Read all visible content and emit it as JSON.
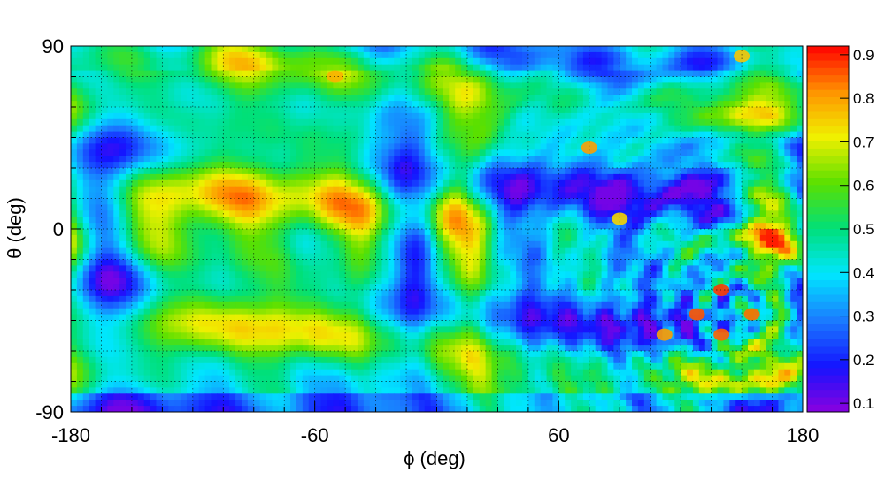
{
  "chart_data": {
    "type": "heatmap",
    "xlabel": "ϕ (deg)",
    "ylabel": "θ (deg)",
    "xlim": [
      -180,
      180
    ],
    "ylim": [
      -90,
      90
    ],
    "x_ticks": [
      -180,
      -60,
      60,
      180
    ],
    "x_tick_labels": [
      "-180",
      "-60",
      "60",
      "180"
    ],
    "y_ticks": [
      -90,
      0,
      90
    ],
    "y_tick_labels": [
      "-90",
      "0",
      "90"
    ],
    "grid": true,
    "colorbar": {
      "range": [
        0.08,
        0.92
      ],
      "ticks": [
        0.1,
        0.2,
        0.3,
        0.4,
        0.5,
        0.6,
        0.7,
        0.8,
        0.9
      ],
      "tick_labels": [
        "0.1",
        "0.2",
        "0.3",
        "0.4",
        "0.5",
        "0.6",
        "0.7",
        "0.8",
        "0.9"
      ],
      "colors": [
        "#8a00e0",
        "#1414ff",
        "#1a7cff",
        "#00e6ff",
        "#00e07a",
        "#5ae000",
        "#f0f000",
        "#ff9200",
        "#ff0000"
      ],
      "placement": "right"
    },
    "highlights": [
      {
        "phi": 140,
        "theta": -30,
        "value": 0.88
      },
      {
        "phi": 128,
        "theta": -42,
        "value": 0.86
      },
      {
        "phi": 155,
        "theta": -42,
        "value": 0.84
      },
      {
        "phi": 140,
        "theta": -52,
        "value": 0.85
      },
      {
        "phi": 112,
        "theta": -52,
        "value": 0.8
      },
      {
        "phi": 75,
        "theta": 40,
        "value": 0.8
      },
      {
        "phi": 90,
        "theta": 5,
        "value": 0.74
      },
      {
        "phi": -50,
        "theta": 75,
        "value": 0.78
      },
      {
        "phi": 150,
        "theta": 85,
        "value": 0.76
      }
    ]
  }
}
